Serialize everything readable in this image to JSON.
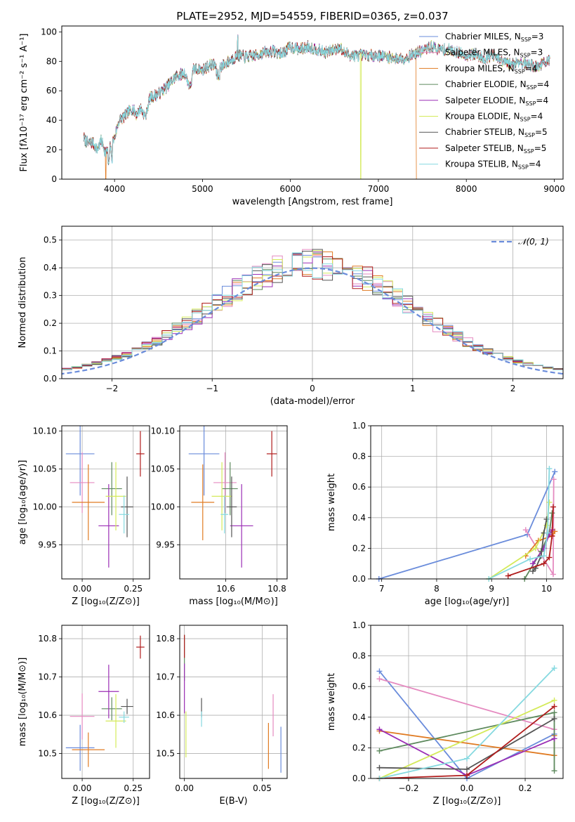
{
  "figure": {
    "title": "PLATE=2952, MJD=54559, FIBERID=0365, z=0.037"
  },
  "colors": {
    "Chabrier MILES": "#6a8cdb",
    "Salpeter MILES": "#e58ac0",
    "Kroupa MILES": "#e07b23",
    "Chabrier ELODIE": "#5e8a5e",
    "Salpeter ELODIE": "#9b2eb5",
    "Kroupa ELODIE": "#d4ea5a",
    "Chabrier STELIB": "#555555",
    "Salpeter STELIB": "#b01c1c",
    "Kroupa STELIB": "#86d9e0",
    "gaussian": "#6a8cdb",
    "grid": "#b0b0b0"
  },
  "chart_data": [
    {
      "id": "spectrum",
      "type": "line",
      "xlabel": "wavelength [Angstrom, rest frame]",
      "ylabel": "Flux [fλ10⁻¹⁷ erg cm⁻² s⁻¹ A⁻¹]",
      "xlim": [
        3400,
        9100
      ],
      "ylim": [
        0,
        104
      ],
      "xticks": [
        4000,
        5000,
        6000,
        7000,
        8000,
        9000
      ],
      "yticks": [
        0,
        20,
        40,
        60,
        80,
        100
      ],
      "grid": false,
      "legend_position": "upper right",
      "series": [
        {
          "name": "Chabrier MILES, N",
          "sub": "SSP",
          "suffix": "=3"
        },
        {
          "name": "Salpeter MILES, N",
          "sub": "SSP",
          "suffix": "=3"
        },
        {
          "name": "Kroupa MILES, N",
          "sub": "SSP",
          "suffix": "=4"
        },
        {
          "name": "Chabrier ELODIE, N",
          "sub": "SSP",
          "suffix": "=4"
        },
        {
          "name": "Salpeter ELODIE, N",
          "sub": "SSP",
          "suffix": "=4"
        },
        {
          "name": "Kroupa ELODIE, N",
          "sub": "SSP",
          "suffix": "=4"
        },
        {
          "name": "Chabrier STELIB, N",
          "sub": "SSP",
          "suffix": "=5"
        },
        {
          "name": "Salpeter STELIB, N",
          "sub": "SSP",
          "suffix": "=5"
        },
        {
          "name": "Kroupa STELIB, N",
          "sub": "SSP",
          "suffix": "=4"
        }
      ],
      "envelope": [
        [
          3650,
          28
        ],
        [
          3700,
          24
        ],
        [
          3750,
          25
        ],
        [
          3800,
          20
        ],
        [
          3850,
          26
        ],
        [
          3900,
          18
        ],
        [
          3950,
          22
        ],
        [
          4000,
          28
        ],
        [
          4050,
          40
        ],
        [
          4100,
          42
        ],
        [
          4150,
          45
        ],
        [
          4200,
          48
        ],
        [
          4250,
          44
        ],
        [
          4300,
          48
        ],
        [
          4350,
          42
        ],
        [
          4400,
          55
        ],
        [
          4500,
          58
        ],
        [
          4600,
          63
        ],
        [
          4700,
          70
        ],
        [
          4800,
          72
        ],
        [
          4860,
          62
        ],
        [
          4900,
          75
        ],
        [
          5000,
          74
        ],
        [
          5100,
          78
        ],
        [
          5200,
          76
        ],
        [
          5300,
          80
        ],
        [
          5400,
          84
        ],
        [
          5500,
          83
        ],
        [
          5600,
          84
        ],
        [
          5700,
          86
        ],
        [
          5800,
          87
        ],
        [
          5900,
          85
        ],
        [
          6000,
          90
        ],
        [
          6100,
          88
        ],
        [
          6200,
          90
        ],
        [
          6300,
          88
        ],
        [
          6400,
          86
        ],
        [
          6500,
          88
        ],
        [
          6563,
          90
        ],
        [
          6600,
          86
        ],
        [
          6700,
          84
        ],
        [
          6800,
          84
        ],
        [
          6900,
          84
        ],
        [
          7000,
          84
        ],
        [
          7100,
          83
        ],
        [
          7200,
          82
        ],
        [
          7300,
          82
        ],
        [
          7400,
          85
        ],
        [
          7500,
          87
        ],
        [
          7600,
          90
        ],
        [
          7700,
          88
        ],
        [
          7800,
          88
        ],
        [
          7900,
          86
        ],
        [
          8000,
          84
        ],
        [
          8100,
          85
        ],
        [
          8200,
          82
        ],
        [
          8300,
          84
        ],
        [
          8400,
          80
        ],
        [
          8500,
          78
        ],
        [
          8600,
          80
        ],
        [
          8700,
          78
        ],
        [
          8800,
          76
        ],
        [
          8900,
          80
        ],
        [
          8950,
          80
        ]
      ],
      "dropouts": [
        {
          "x": 3900,
          "series": "Kroupa MILES"
        },
        {
          "x": 6800,
          "series": "Kroupa ELODIE"
        },
        {
          "x": 7430,
          "series": "Kroupa MILES"
        }
      ]
    },
    {
      "id": "residuals",
      "type": "histogram",
      "xlabel": "(data-model)/error",
      "ylabel": "Normed distribution",
      "xlim": [
        -2.5,
        2.5
      ],
      "ylim": [
        0,
        0.55
      ],
      "xticks": [
        -2,
        -1,
        0,
        1,
        2
      ],
      "yticks": [
        0.0,
        0.1,
        0.2,
        0.3,
        0.4,
        0.5
      ],
      "grid": true,
      "legend_position": "upper right",
      "reference_curve": {
        "label": "𝒩(0, 1)",
        "mean": 0,
        "sigma": 1,
        "style": "dashed"
      },
      "bin_width": 0.1
    },
    {
      "id": "age_vs_Z",
      "type": "errorbar",
      "xlabel": "Z [log₁₀(Z/Z⊙)]",
      "ylabel": "age  [log₁₀(age/yr)]",
      "xlim": [
        -0.1,
        0.33
      ],
      "ylim": [
        9.905,
        10.107
      ],
      "xticks": [
        0.0,
        0.25
      ],
      "yticks": [
        9.95,
        10.0,
        10.05,
        10.1
      ],
      "grid": true,
      "points": [
        {
          "series": "Chabrier MILES",
          "x": -0.01,
          "xerr": 0.07,
          "y": 10.07,
          "yerr": 0.055
        },
        {
          "series": "Salpeter MILES",
          "x": 0.0,
          "xerr": 0.06,
          "y": 10.032,
          "yerr": 0.04
        },
        {
          "series": "Kroupa MILES",
          "x": 0.03,
          "xerr": 0.08,
          "y": 10.006,
          "yerr": 0.05
        },
        {
          "series": "Chabrier ELODIE",
          "x": 0.145,
          "xerr": 0.05,
          "y": 10.024,
          "yerr": 0.035
        },
        {
          "series": "Salpeter ELODIE",
          "x": 0.13,
          "xerr": 0.05,
          "y": 9.975,
          "yerr": 0.055
        },
        {
          "series": "Kroupa ELODIE",
          "x": 0.165,
          "xerr": 0.05,
          "y": 10.014,
          "yerr": 0.045
        },
        {
          "series": "Chabrier STELIB",
          "x": 0.22,
          "xerr": 0.03,
          "y": 10.0,
          "yerr": 0.04
        },
        {
          "series": "Salpeter STELIB",
          "x": 0.285,
          "xerr": 0.02,
          "y": 10.07,
          "yerr": 0.03
        },
        {
          "series": "Kroupa STELIB",
          "x": 0.205,
          "xerr": 0.025,
          "y": 9.99,
          "yerr": 0.025
        }
      ]
    },
    {
      "id": "age_vs_mass",
      "type": "errorbar",
      "xlabel": "mass [log₁₀(M/M⊙)]",
      "ylabel": "",
      "xlim": [
        10.42,
        10.84
      ],
      "ylim": [
        9.905,
        10.107
      ],
      "xticks": [
        10.6,
        10.8
      ],
      "yticks": [
        9.95,
        10.0,
        10.05,
        10.1
      ],
      "grid": true,
      "points": [
        {
          "series": "Chabrier MILES",
          "x": 10.515,
          "xerr": 0.06,
          "y": 10.07,
          "yerr": 0.055
        },
        {
          "series": "Salpeter MILES",
          "x": 10.597,
          "xerr": 0.045,
          "y": 10.032,
          "yerr": 0.04
        },
        {
          "series": "Kroupa MILES",
          "x": 10.51,
          "xerr": 0.045,
          "y": 10.006,
          "yerr": 0.05
        },
        {
          "series": "Chabrier ELODIE",
          "x": 10.617,
          "xerr": 0.03,
          "y": 10.024,
          "yerr": 0.035
        },
        {
          "series": "Salpeter ELODIE",
          "x": 10.662,
          "xerr": 0.045,
          "y": 9.975,
          "yerr": 0.055
        },
        {
          "series": "Kroupa ELODIE",
          "x": 10.585,
          "xerr": 0.04,
          "y": 10.014,
          "yerr": 0.045
        },
        {
          "series": "Chabrier STELIB",
          "x": 10.623,
          "xerr": 0.02,
          "y": 10.0,
          "yerr": 0.04
        },
        {
          "series": "Salpeter STELIB",
          "x": 10.78,
          "xerr": 0.02,
          "y": 10.07,
          "yerr": 0.03
        },
        {
          "series": "Kroupa STELIB",
          "x": 10.595,
          "xerr": 0.015,
          "y": 9.99,
          "yerr": 0.025
        }
      ]
    },
    {
      "id": "weight_vs_age",
      "type": "line",
      "xlabel": "age  [log₁₀(age/yr)]",
      "ylabel": "mass weight",
      "xlim": [
        6.8,
        10.3
      ],
      "ylim": [
        0,
        1.0
      ],
      "xticks": [
        7,
        8,
        9,
        10
      ],
      "yticks": [
        0.0,
        0.2,
        0.4,
        0.6,
        0.8,
        1.0
      ],
      "grid": true,
      "series": [
        {
          "name": "Chabrier MILES",
          "x": [
            6.95,
            9.65,
            10.15
          ],
          "y": [
            0.0,
            0.29,
            0.7
          ]
        },
        {
          "name": "Salpeter MILES",
          "x": [
            9.62,
            10.12,
            10.13
          ],
          "y": [
            0.32,
            0.03,
            0.65
          ]
        },
        {
          "name": "Kroupa MILES",
          "x": [
            9.62,
            9.85,
            10.1,
            10.15
          ],
          "y": [
            0.15,
            0.25,
            0.28,
            0.31
          ]
        },
        {
          "name": "Chabrier ELODIE",
          "x": [
            9.6,
            9.9,
            10.05,
            10.1
          ],
          "y": [
            0.0,
            0.18,
            0.3,
            0.43
          ]
        },
        {
          "name": "Salpeter ELODIE",
          "x": [
            9.75,
            9.95,
            10.05,
            10.1
          ],
          "y": [
            0.1,
            0.2,
            0.29,
            0.32
          ]
        },
        {
          "name": "Kroupa ELODIE",
          "x": [
            8.95,
            9.8,
            10.0,
            10.05
          ],
          "y": [
            0.0,
            0.2,
            0.35,
            0.5
          ]
        },
        {
          "name": "Chabrier STELIB",
          "x": [
            9.75,
            9.8,
            9.9,
            9.95,
            10.0
          ],
          "y": [
            0.05,
            0.07,
            0.15,
            0.3,
            0.39
          ]
        },
        {
          "name": "Salpeter STELIB",
          "x": [
            9.3,
            9.95,
            10.05,
            10.1,
            10.12
          ],
          "y": [
            0.02,
            0.1,
            0.14,
            0.28,
            0.47
          ]
        },
        {
          "name": "Kroupa STELIB",
          "x": [
            8.95,
            9.7,
            9.95,
            10.02,
            10.05
          ],
          "y": [
            0.0,
            0.13,
            0.15,
            0.3,
            0.72
          ]
        }
      ]
    },
    {
      "id": "mass_vs_Z",
      "type": "errorbar",
      "xlabel": "Z [log₁₀(Z/Z⊙)]",
      "ylabel": "mass [log₁₀(M/M⊙)]",
      "xlim": [
        -0.1,
        0.33
      ],
      "ylim": [
        10.435,
        10.835
      ],
      "xticks": [
        0.0,
        0.25
      ],
      "yticks": [
        10.5,
        10.6,
        10.7,
        10.8
      ],
      "grid": true,
      "points": [
        {
          "series": "Chabrier MILES",
          "x": -0.01,
          "xerr": 0.07,
          "y": 10.515,
          "yerr": 0.06
        },
        {
          "series": "Salpeter MILES",
          "x": 0.0,
          "xerr": 0.06,
          "y": 10.597,
          "yerr": 0.06
        },
        {
          "series": "Kroupa MILES",
          "x": 0.03,
          "xerr": 0.08,
          "y": 10.51,
          "yerr": 0.045
        },
        {
          "series": "Chabrier ELODIE",
          "x": 0.145,
          "xerr": 0.05,
          "y": 10.617,
          "yerr": 0.03
        },
        {
          "series": "Salpeter ELODIE",
          "x": 0.13,
          "xerr": 0.05,
          "y": 10.662,
          "yerr": 0.07
        },
        {
          "series": "Kroupa ELODIE",
          "x": 0.165,
          "xerr": 0.05,
          "y": 10.585,
          "yerr": 0.07
        },
        {
          "series": "Chabrier STELIB",
          "x": 0.22,
          "xerr": 0.03,
          "y": 10.623,
          "yerr": 0.02
        },
        {
          "series": "Salpeter STELIB",
          "x": 0.285,
          "xerr": 0.02,
          "y": 10.778,
          "yerr": 0.03
        },
        {
          "series": "Kroupa STELIB",
          "x": 0.205,
          "xerr": 0.025,
          "y": 10.595,
          "yerr": 0.015
        }
      ]
    },
    {
      "id": "mass_vs_ebv",
      "type": "errorbar",
      "xlabel": "E(B-V)",
      "ylabel": "",
      "xlim": [
        -0.003,
        0.066
      ],
      "ylim": [
        10.435,
        10.835
      ],
      "xticks": [
        0.0,
        0.05
      ],
      "yticks": [
        10.5,
        10.6,
        10.7,
        10.8
      ],
      "grid": true,
      "points": [
        {
          "series": "Chabrier MILES",
          "x": 0.062,
          "xerr": 0,
          "y": 10.51,
          "yerr": 0.06
        },
        {
          "series": "Salpeter MILES",
          "x": 0.057,
          "xerr": 0,
          "y": 10.6,
          "yerr": 0.055
        },
        {
          "series": "Kroupa MILES",
          "x": 0.054,
          "xerr": 0,
          "y": 10.52,
          "yerr": 0.06
        },
        {
          "series": "Chabrier ELODIE",
          "x": 0.0,
          "xerr": 0,
          "y": 10.75,
          "yerr": 0.06
        },
        {
          "series": "Salpeter ELODIE",
          "x": 0.0,
          "xerr": 0,
          "y": 10.67,
          "yerr": 0.065
        },
        {
          "series": "Kroupa ELODIE",
          "x": 0.001,
          "xerr": 0,
          "y": 10.55,
          "yerr": 0.06
        },
        {
          "series": "Chabrier STELIB",
          "x": 0.011,
          "xerr": 0,
          "y": 10.62,
          "yerr": 0.025
        },
        {
          "series": "Salpeter STELIB",
          "x": 0.0,
          "xerr": 0,
          "y": 10.78,
          "yerr": 0.03
        },
        {
          "series": "Kroupa STELIB",
          "x": 0.011,
          "xerr": 0,
          "y": 10.59,
          "yerr": 0.02
        }
      ]
    },
    {
      "id": "weight_vs_Z",
      "type": "line",
      "xlabel": "Z [log₁₀(Z/Z⊙)]",
      "ylabel": "mass weight",
      "xlim": [
        -0.33,
        0.33
      ],
      "ylim": [
        0,
        1.0
      ],
      "xticks": [
        -0.2,
        0.0,
        0.2
      ],
      "yticks": [
        0.0,
        0.2,
        0.4,
        0.6,
        0.8,
        1.0
      ],
      "grid": true,
      "series": [
        {
          "name": "Chabrier MILES",
          "x": [
            -0.3,
            0.0,
            0.3
          ],
          "y": [
            0.7,
            0.0,
            0.29
          ]
        },
        {
          "name": "Salpeter MILES",
          "x": [
            -0.3,
            0.3
          ],
          "y": [
            0.65,
            0.32
          ]
        },
        {
          "name": "Kroupa MILES",
          "x": [
            -0.3,
            0.3,
            0.3
          ],
          "y": [
            0.31,
            0.15,
            0.28
          ]
        },
        {
          "name": "Chabrier ELODIE",
          "x": [
            -0.3,
            0.3,
            0.3
          ],
          "y": [
            0.18,
            0.43,
            0.05
          ]
        },
        {
          "name": "Salpeter ELODIE",
          "x": [
            -0.3,
            0.0,
            0.3
          ],
          "y": [
            0.32,
            0.02,
            0.26
          ]
        },
        {
          "name": "Kroupa ELODIE",
          "x": [
            -0.3,
            0.3
          ],
          "y": [
            0.0,
            0.51
          ]
        },
        {
          "name": "Chabrier STELIB",
          "x": [
            -0.3,
            0.0,
            0.3
          ],
          "y": [
            0.07,
            0.06,
            0.39
          ]
        },
        {
          "name": "Salpeter STELIB",
          "x": [
            -0.3,
            0.0,
            0.3
          ],
          "y": [
            0.0,
            0.02,
            0.47
          ]
        },
        {
          "name": "Kroupa STELIB",
          "x": [
            -0.3,
            0.0,
            0.3
          ],
          "y": [
            0.0,
            0.13,
            0.72
          ]
        }
      ]
    }
  ]
}
